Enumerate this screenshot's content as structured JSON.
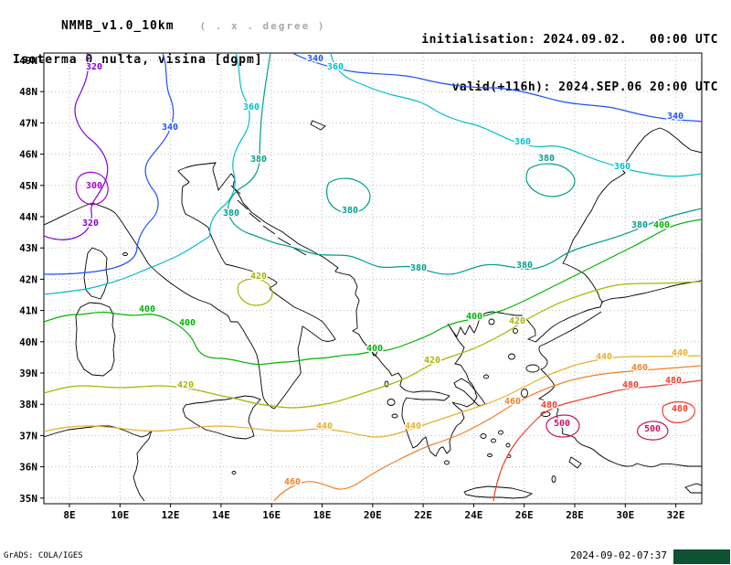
{
  "header": {
    "model": "NMMB_v1.0_10km",
    "degree_note": "( . x . degree )",
    "field_title": "Isoterma 0 nulta, visina [dgpm]",
    "init_label": "initialisation: 2024.09.02.   00:00 UTC",
    "valid_label": "valid(+116h): 2024.SEP.06 20:00 UTC"
  },
  "footer": {
    "grads_credit": "GrADS: COLA/IGES",
    "created": "2024-09-02-07:37",
    "logo_color": "#0f5132"
  },
  "axes": {
    "lon": [
      "8E",
      "10E",
      "12E",
      "14E",
      "16E",
      "18E",
      "20E",
      "22E",
      "24E",
      "26E",
      "28E",
      "30E",
      "32E"
    ],
    "lat": [
      "49N",
      "48N",
      "47N",
      "46N",
      "45N",
      "44N",
      "43N",
      "42N",
      "41N",
      "40N",
      "39N",
      "38N",
      "37N",
      "36N",
      "35N"
    ]
  },
  "chart_data": {
    "type": "contour-map",
    "title": "Isoterma 0 nulta, visina [dgpm]",
    "model": "NMMB_v1.0_10km",
    "unit": "dgpm",
    "lon_range": [
      "8E",
      "32E"
    ],
    "lat_range": [
      "35N",
      "49N"
    ],
    "grid": true,
    "levels": [
      300,
      320,
      340,
      360,
      380,
      400,
      420,
      440,
      460,
      480,
      500
    ],
    "coastlines": {
      "color": "#000000",
      "paths": [
        "M48,246 C70,236 88,226 101,222 C112,226 120,228 126,233 C132,240 136,247 140,253 C146,262 154,274 162,288 C170,297 184,308 193,314 C200,319 208,324 215,327 C222,330 227,331 231,333 C237,338 243,341 249,345 C252,348 251,351 253,352 C256,352 258,352 260,352 C263,356 266,360 270,368 C274,374 278,381 281,388 C283,396 284,404 285,412 C286,422 287,430 288,434 C290,440 294,444 300,447 C304,443 308,437 312,432 C315,428 321,419 325,414 C328,410 330,408 329,406 C328,399 327,391 326,382 C328,374 330,365 331,357 C335,359 344,366 352,372 C357,374 362,374 367,371 C363,365 358,358 353,352 C348,348 332,340 322,336 C317,332 305,324 300,320 C297,318 295,316 295,315 C298,313 303,311 303,309 C300,306 291,302 286,300 C283,299 281,298 280,298 C275,296 256,291 247,289 C243,284 236,269 232,260 C230,256 229,252 228,249 C224,245 209,237 203,234 C201,230 200,226 199,222 C199,216 199,209 200,204 C203,202 206,201 207,199 C204,196 197,190 195,187 C198,185 207,182 212,181 C217,180 228,179 236,178 C234,181 233,183 233,186 C234,190 237,199 239,208 C242,204 248,196 253,190 C255,192 256,194 257,196 C256,199 255,202 255,205 C258,208 262,213 266,222 C268,224 272,228 275,232 C278,234 286,240 290,243 C295,246 302,250 308,253 C312,256 322,263 327,267 C331,269 341,274 346,277 C349,279 352,280 355,282 C358,284 366,290 370,293 C369,294 367,296 367,297 C369,298 378,300 383,301 C385,303 389,306 388,307 C389,309 391,312 391,314 C390,317 389,319 389,322 C390,324 393,327 393,329 C392,332 391,335 390,340 C390,346 391,353 391,359 C389,360 387,361 386,362 C388,363 392,365 393,366 C394,368 396,371 397,373 C399,375 404,382 409,387 C411,389 412,390 414,392 C416,395 421,401 426,406 C427,408 428,410 429,411 C431,410 434,409 436,408 C437,410 440,413 440,415 C439,417 438,420 438,422 C440,424 442,426 444,427 C447,428 450,429 452,429 C455,429 459,428 462,428 C466,428 469,428 472,428 C475,429 479,429 482,430 C485,431 489,432 492,433 C490,435 488,437 486,438 C483,438 479,437 476,437 C472,437 468,437 464,437 C460,437 449,436 445,435 C443,438 441,441 441,444 C440,448 440,452 440,455 C441,459 443,464 444,468 C445,472 447,477 448,480 C449,483 451,487 452,490 C454,489 456,488 457,487 C459,485 461,483 462,481 C463,480 465,479 466,478 C467,481 467,483 468,486 C469,489 470,492 471,494 C473,496 475,498 477,499 C478,496 480,493 481,491 C482,490 484,489 485,489 C486,491 488,494 489,496 C490,495 492,493 493,492 C493,489 492,486 492,483 C493,480 494,477 495,474 C496,472 498,469 499,467 C500,465 502,464 504,463 C505,461 507,459 508,457 C507,455 506,452 506,450 C504,448 501,446 499,444 C498,443 496,441 495,440 C498,441 501,442 503,442 C506,443 509,444 511,445 C513,444 516,442 518,441 C519,439 521,436 522,434 C521,432 520,429 520,427 C519,425 518,423 517,421 C516,419 514,418 513,416 C512,413 511,410 510,408 C508,405 506,403 505,400 C503,399 500,398 498,398 C500,395 503,391 505,388 C506,385 507,383 508,380 C505,377 502,373 500,370 C498,367 496,363 494,360 C493,358 491,356 490,354 C492,357 494,360 495,362 C497,364 498,366 500,368 C501,365 503,361 504,358 C506,361 507,364 509,366 C511,363 512,359 514,356 C516,359 517,362 519,364 C521,360 523,355 524,351 C526,348 528,345 530,343 C533,342 537,341 540,341 C544,342 548,342 552,343 C556,344 560,344 564,345 C566,345 569,345 571,345 C573,347 576,349 578,351 C580,354 583,357 585,360 C586,362 586,365 586,367 C583,368 580,370 578,371 C581,372 584,373 586,374 C589,372 591,369 594,367 C597,364 600,361 604,358 C608,355 613,352 618,350 C623,347 629,345 634,343 C639,341 643,339 648,338 C651,337 654,336 657,336 C658,334 658,332 659,330 C662,329 665,328 668,327 C673,326 678,326 684,325 C690,324 697,322 704,321 C712,319 720,317 728,315 C735,313 743,311 750,310 C756,309 762,308 768,307",
        "M660,331 C657,328 655,325 655,322 C653,318 650,313 648,310 C645,306 643,303 640,300 C636,297 632,295 628,293 C624,291 620,289 616,288 C618,285 620,281 621,278 C623,273 625,268 627,263 C629,259 632,256 634,252 C636,248 639,244 641,240 C643,236 646,233 648,229 C650,224 653,219 655,215 C658,211 660,208 663,205 C665,202 668,200 670,198 C672,197 675,195 677,194 C679,192 682,191 684,189 C682,187 681,186 679,184 C681,181 684,179 686,176 C689,172 692,167 695,163 C697,160 699,157 701,155 C703,153 704,151 706,149 C709,147 711,145 714,143 C717,142 719,141 722,140 C725,141 728,142 731,144 C734,146 737,149 740,151 C743,153 745,156 748,158 C751,160 753,162 756,164 C760,165 764,166 768,167",
        "M658,341 C646,349 634,357 620,364 C606,371 598,376 592,378 C588,380 590,386 596,391 C602,396 598,402 592,404 C598,410 604,416 607,422 C604,428 596,432 590,436 C598,438 606,441 611,448 C607,455 612,462 616,470 C613,478 621,473 629,479 C636,490 644,487 651,493 C658,500 666,504 674,507 C682,510 690,512 697,507 C704,509 713,513 722,508 C732,506 742,509 753,510 C762,510 766,510 768,510",
        "M285,437 L277,446 L273,455 L272,461 L276,470 L278,477 L269,480 L258,479 L249,477 L237,473 L225,470 L213,463 L203,456 L200,448 L203,443 L213,441 L224,440 L235,438 L247,437 L258,435 L268,433 L277,434 Z",
        "M98,331 L110,332 L120,336 L124,344 L123,356 L126,368 L124,382 L125,394 L122,404 L113,411 L101,410 L92,404 L85,392 L83,376 L84,360 L83,346 L88,336 Z",
        "M101,271 L111,275 L117,282 L116,295 L118,307 L114,319 L110,327 L100,324 L94,317 L92,304 L94,289 L96,277 Z",
        "M48,478 L60,474 L75,470 L92,468 L108,466 L120,466 L128,468 L137,471 L146,475 L155,478 L161,476 L166,471 L163,480 L156,488 L150,496 L151,505 L149,514 L146,522 L149,532 L153,541 L158,548",
        "M508,538 L520,534 L534,532 L548,533 L560,534 L572,537 L582,540 L575,544 L562,545 L548,544 L534,544 L520,543 L510,541 Z",
        "M497,419 L505,414 L513,419 L520,427 L527,436 L531,442 L524,444 L516,436 L508,428 L499,423 Z",
        "M253,203 L263,212",
        "M260,219 L271,229",
        "M273,233 L285,243",
        "M288,247 L301,256",
        "M304,260 L318,268",
        "M321,271 L335,279",
        "M625,500 L636,507 L632,512 L623,505 Z",
        "M750,533 L762,529 L768,531 L768,539 L756,539 Z",
        "M342,132 L356,138 L351,142 L340,136 Z"
      ]
    },
    "islands": [
      [
        583,
        403,
        7,
        4
      ],
      [
        574,
        430,
        3.5,
        4.5
      ],
      [
        597,
        453,
        5,
        2.5
      ],
      [
        560,
        390,
        3.5,
        3
      ],
      [
        538,
        352,
        3,
        3
      ],
      [
        564,
        362,
        2.5,
        2.5
      ],
      [
        532,
        412,
        2.5,
        2
      ],
      [
        529,
        477,
        3,
        2.5
      ],
      [
        540,
        482,
        2.5,
        2
      ],
      [
        548,
        473,
        2.5,
        2
      ],
      [
        556,
        487,
        2,
        2
      ],
      [
        536,
        498,
        2.5,
        1.5
      ],
      [
        557,
        499,
        2,
        1.5
      ],
      [
        489,
        506,
        2.5,
        2
      ],
      [
        606,
        524,
        2,
        3.5
      ],
      [
        410,
        384,
        2.5,
        5
      ],
      [
        428,
        440,
        4,
        3.5
      ],
      [
        432,
        455,
        3,
        2
      ],
      [
        423,
        420,
        2,
        3
      ],
      [
        256,
        517,
        2,
        1.5
      ],
      [
        137,
        278,
        2.5,
        1.5
      ]
    ],
    "contours": [
      {
        "level": "300",
        "color": "#a000c8",
        "paths": [
          "M88,192 C100,184 116,190 118,204 C120,218 106,228 94,222 C82,216 80,200 88,192 Z"
        ],
        "labels": [
          [
            103,
            206
          ]
        ]
      },
      {
        "level": "320",
        "color": "#7d00dc",
        "paths": [
          "M95,58 C100,78 92,94 85,108 C78,122 84,138 96,150 C112,162 122,178 116,196 C110,214 98,220 100,232 C102,246 94,256 82,260 C70,264 58,262 48,258"
        ],
        "labels": [
          [
            103,
            76
          ],
          [
            99,
            247
          ]
        ]
      },
      {
        "level": "340",
        "color": "#1e50ff",
        "paths": [
          "M178,58 C184,74 180,92 186,106 C192,120 190,134 184,146 C178,158 168,166 162,176 C156,186 160,198 168,208 C176,218 174,232 166,240 C158,248 152,258 150,270 C150,282 140,288 128,292 C112,297 96,298 84,299 C70,300 56,300 48,300",
          "M320,58 C340,68 362,74 384,78 C410,82 436,80 460,86 C484,92 510,96 536,96 C562,96 586,104 610,110 C634,116 658,114 680,120 C702,126 724,130 740,131 C752,132 762,132 768,133"
        ],
        "labels": [
          [
            186,
            142
          ],
          [
            345,
            67
          ],
          [
            739,
            130
          ]
        ]
      },
      {
        "level": "360",
        "color": "#00c0cc",
        "paths": [
          "M258,58 C264,76 260,94 268,108 C276,122 274,138 266,150 C258,162 252,176 256,190 C260,204 254,218 244,226 C234,234 228,246 230,258 C218,266 206,274 194,280 C180,287 166,292 152,298 C136,305 120,310 104,314 C88,318 66,320 48,322",
          "M362,58 C364,70 372,82 386,88 C400,94 414,100 430,104 C446,108 460,110 472,118 C484,126 500,132 514,135 C528,138 542,146 556,152 C570,158 584,162 598,160 C612,158 626,164 640,170 C654,176 668,180 682,184 C696,188 710,190 724,192 C738,194 756,192 768,190"
        ],
        "labels": [
          [
            275,
            120
          ],
          [
            367,
            76
          ],
          [
            572,
            158
          ],
          [
            681,
            185
          ]
        ]
      },
      {
        "level": "380",
        "color": "#009e8e",
        "paths": [
          "M296,58 C292,82 288,108 286,130 C285,146 284,160 284,174 C284,188 276,198 266,204 C256,210 248,220 250,232 C252,244 262,252 274,256 C286,260 298,266 310,268 C322,270 334,276 346,278 C358,280 370,278 382,280 C394,282 404,290 416,292 C428,294 440,290 452,292 C464,294 476,300 490,300 C504,300 516,292 530,290 C544,288 558,292 572,294 C586,296 600,290 612,282 C624,274 638,270 652,266 C666,262 680,258 694,252 C708,246 722,240 736,236 C750,232 760,230 768,228",
          "M360,200 C372,192 390,194 400,204 C410,214 404,228 390,232 C376,236 360,228 358,214 C357,207 358,203 360,200 Z",
          "M580,184 C594,176 614,178 624,188 C634,198 628,210 612,214 C596,218 578,208 576,196 C576,190 577,186 580,184 Z"
        ],
        "labels": [
          [
            283,
            177
          ],
          [
            253,
            236
          ],
          [
            458,
            296
          ],
          [
            574,
            293
          ],
          [
            700,
            249
          ],
          [
            383,
            233
          ],
          [
            598,
            176
          ]
        ]
      },
      {
        "level": "400",
        "color": "#00b400",
        "paths": [
          "M48,352 C60,348 72,344 84,344 C96,344 108,340 120,342 C132,344 146,346 158,344 C170,342 182,348 192,354 C202,360 210,368 214,378 C218,388 228,392 240,392 C252,392 264,396 276,398 C288,400 300,396 312,396 C324,396 336,392 348,392 C360,392 372,388 384,388 C396,388 404,384 414,384 C424,384 436,380 446,376 C456,372 468,368 478,362 C488,356 500,352 512,350 C524,348 536,344 548,340 C560,336 572,330 584,324 C596,318 608,312 620,306 C632,300 644,294 656,288 C668,282 680,276 692,270 C704,264 716,257 726,252 C738,245 754,242 768,240"
        ],
        "labels": [
          [
            161,
            341
          ],
          [
            205,
            356
          ],
          [
            410,
            384
          ],
          [
            519,
            349
          ],
          [
            724,
            249
          ]
        ]
      },
      {
        "level": "420",
        "color": "#a8b400",
        "paths": [
          "M48,430 C62,426 76,422 90,422 C104,422 118,424 132,424 C146,424 160,422 174,422 C188,422 200,424 212,426 C224,428 236,432 248,434 C260,436 272,440 284,442 C296,444 308,446 320,446 C332,446 344,444 356,442 C368,440 380,436 392,432 C404,428 416,424 428,420 C440,416 452,410 462,404 C472,398 482,394 494,390 C506,386 518,382 530,376 C542,370 554,364 566,356 C578,348 590,342 602,336 C614,330 626,326 638,322 C650,318 662,314 674,312 C686,310 700,310 712,310 C724,310 748,309 768,308",
          "M262,310 C272,302 290,304 296,314 C302,324 294,334 280,334 C266,334 256,320 262,310 Z"
        ],
        "labels": [
          [
            203,
            424
          ],
          [
            473,
            397
          ],
          [
            566,
            354
          ],
          [
            283,
            305
          ]
        ]
      },
      {
        "level": "440",
        "color": "#e6af2d",
        "paths": [
          "M48,472 C64,468 80,466 96,466 C112,466 128,468 144,470 C160,472 176,472 192,470 C208,468 224,466 240,466 C256,466 272,468 288,470 C304,472 320,472 336,470 C352,468 364,470 376,472 C388,474 400,478 412,478 C424,478 436,474 448,470 C460,466 472,462 484,458 C496,454 508,450 520,446 C532,442 544,438 556,432 C568,426 580,420 592,414 C604,408 616,404 628,400 C640,396 652,394 664,392 C676,390 688,390 700,390 C712,390 736,390 768,389"
        ],
        "labels": [
          [
            355,
            469
          ],
          [
            452,
            469
          ],
          [
            661,
            393
          ],
          [
            744,
            389
          ]
        ]
      },
      {
        "level": "460",
        "color": "#f08228",
        "paths": [
          "M300,548 C308,538 318,532 330,528 C342,524 354,530 366,534 C378,538 390,530 402,522 C414,514 426,508 438,502 C450,496 462,490 474,486 C486,482 498,478 510,472 C522,466 534,460 546,452 C558,444 570,438 582,432 C594,426 606,422 618,418 C630,414 642,412 654,410 C666,408 678,407 690,406 C702,405 716,404 730,403 C744,402 756,401 768,400"
        ],
        "labels": [
          [
            320,
            530
          ],
          [
            561,
            442
          ],
          [
            700,
            405
          ]
        ]
      },
      {
        "level": "480",
        "color": "#f03c28",
        "paths": [
          "M768,416 C752,418 736,420 720,422 C704,424 688,424 672,428 C656,432 640,436 624,440 C608,444 596,450 588,458 C580,466 572,474 566,482 C560,490 554,500 550,510 C546,520 542,534 540,548",
          "M726,444 C736,438 750,438 758,444 C764,450 758,460 746,462 C732,464 722,456 726,444 Z"
        ],
        "labels": [
          [
            690,
            424
          ],
          [
            601,
            446
          ],
          [
            737,
            419
          ],
          [
            744,
            450
          ]
        ]
      },
      {
        "level": "500",
        "color": "#c81464",
        "paths": [
          "M600,460 C610,452 626,452 632,460 C638,468 630,478 616,478 C602,478 594,468 600,460 Z",
          "M700,466 C710,458 726,460 730,468 C734,476 724,482 712,481 C700,480 694,474 700,466 Z"
        ],
        "labels": [
          [
            615,
            466
          ],
          [
            714,
            472
          ]
        ]
      }
    ]
  }
}
